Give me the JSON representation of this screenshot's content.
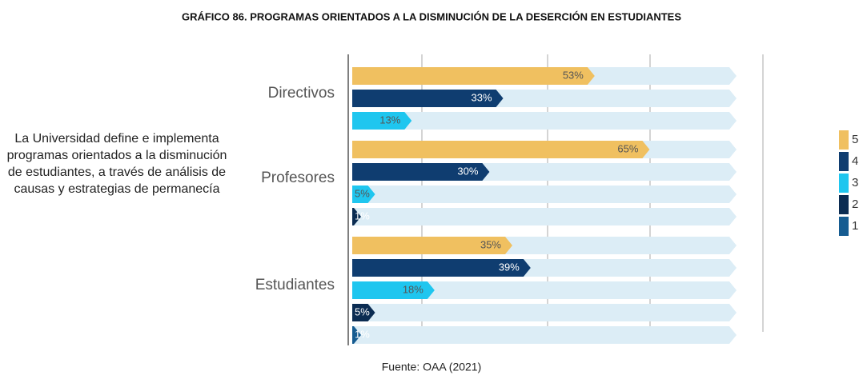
{
  "chart_data": {
    "type": "bar",
    "orientation": "horizontal",
    "title": "GRÁFICO 86. PROGRAMAS ORIENTADOS A LA DISMINUCIÓN DE LA DESERCIÓN EN ESTUDIANTES",
    "description": "La Universidad define e implementa programas orientados a la disminución de estudiantes, a través de análisis de causas y estrategias de permanecía",
    "source": "Fuente: OAA (2021)",
    "categories": [
      "Directivos",
      "Profesores",
      "Estudiantes"
    ],
    "xlim": [
      0,
      84
    ],
    "series": [
      {
        "name": "5",
        "color": "#f0c060",
        "values": [
          53,
          65,
          35
        ],
        "value_labels": [
          "53%",
          "65%",
          "35%"
        ]
      },
      {
        "name": "4",
        "color": "#0f3d70",
        "values": [
          33,
          30,
          39
        ],
        "value_labels": [
          "33%",
          "30%",
          "39%"
        ]
      },
      {
        "name": "3",
        "color": "#1fc6ef",
        "values": [
          13,
          5,
          18
        ],
        "value_labels": [
          "13%",
          "5%",
          "18%"
        ]
      },
      {
        "name": "2",
        "color": "#0b2c52",
        "values": [
          null,
          1,
          5
        ],
        "value_labels": [
          null,
          "1%",
          "5%"
        ]
      },
      {
        "name": "1",
        "color": "#165c91",
        "values": [
          null,
          null,
          1
        ],
        "value_labels": [
          null,
          null,
          "1%"
        ]
      }
    ]
  }
}
